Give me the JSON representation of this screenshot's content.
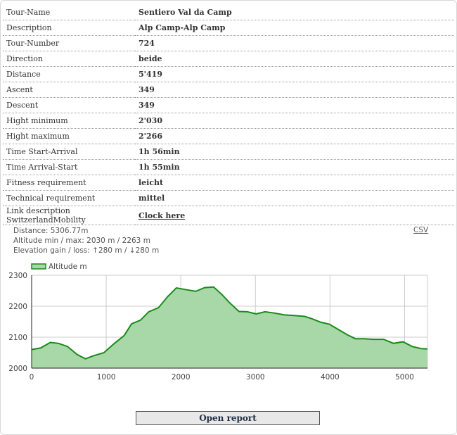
{
  "info_rows": [
    {
      "key": "Tour-Name",
      "value": "Sentiero Val da Camp"
    },
    {
      "key": "Description",
      "value": "Alp Camp-Alp Camp"
    },
    {
      "key": "Tour-Number",
      "value": "724"
    },
    {
      "key": "Direction",
      "value": "beide"
    },
    {
      "key": "Distance",
      "value": "5'419"
    },
    {
      "key": "Ascent",
      "value": "349"
    },
    {
      "key": "Descent",
      "value": "349"
    },
    {
      "key": "Hight minimum",
      "value": "2'030"
    },
    {
      "key": "Hight maximum",
      "value": "2'266"
    },
    {
      "key": "Time Start-Arrival",
      "value": "1h 56min"
    },
    {
      "key": "Time Arrival-Start",
      "value": "1h 55min"
    },
    {
      "key": "Fitness requirement",
      "value": "leicht"
    },
    {
      "key": "Technical requirement",
      "value": "mittel"
    },
    {
      "key": "Link description SwitzerlandMobility",
      "value": "Clock here"
    }
  ],
  "stats": {
    "distance": "Distance: 5306.77m",
    "altitude": "Altitude min / max: 2030 m / 2263 m",
    "elevation": "Elevation gain / loss: ↑280 m / ↓280 m"
  },
  "csv_label": "CSV",
  "report_button": "Open report",
  "colors": {
    "line": "#1a8a1a",
    "fill": "#a8d8a8",
    "grid": "#cccccc"
  },
  "chart_data": {
    "type": "area",
    "title": "",
    "xlabel": "",
    "ylabel": "",
    "legend": "Altitude m",
    "legend_position": "top-left",
    "xlim": [
      0,
      5306.77
    ],
    "ylim": [
      2000,
      2300
    ],
    "x_ticks": [
      0,
      1000,
      2000,
      3000,
      4000,
      5000
    ],
    "y_ticks": [
      2000,
      2100,
      2200,
      2300
    ],
    "grid": true,
    "series": [
      {
        "name": "Altitude m",
        "x": [
          0,
          120,
          250,
          360,
          480,
          610,
          720,
          830,
          970,
          1110,
          1240,
          1340,
          1460,
          1570,
          1700,
          1820,
          1940,
          2080,
          2200,
          2320,
          2440,
          2550,
          2650,
          2780,
          2890,
          3010,
          3130,
          3250,
          3390,
          3520,
          3660,
          3750,
          3880,
          3990,
          4110,
          4230,
          4340,
          4460,
          4580,
          4720,
          4850,
          4980,
          5100,
          5220,
          5306
        ],
        "y": [
          2060,
          2065,
          2083,
          2080,
          2070,
          2044,
          2030,
          2040,
          2050,
          2080,
          2105,
          2143,
          2155,
          2182,
          2195,
          2230,
          2259,
          2253,
          2248,
          2260,
          2262,
          2238,
          2212,
          2183,
          2182,
          2175,
          2182,
          2178,
          2172,
          2170,
          2167,
          2160,
          2148,
          2142,
          2125,
          2108,
          2095,
          2095,
          2093,
          2093,
          2080,
          2085,
          2070,
          2063,
          2062
        ]
      }
    ]
  }
}
